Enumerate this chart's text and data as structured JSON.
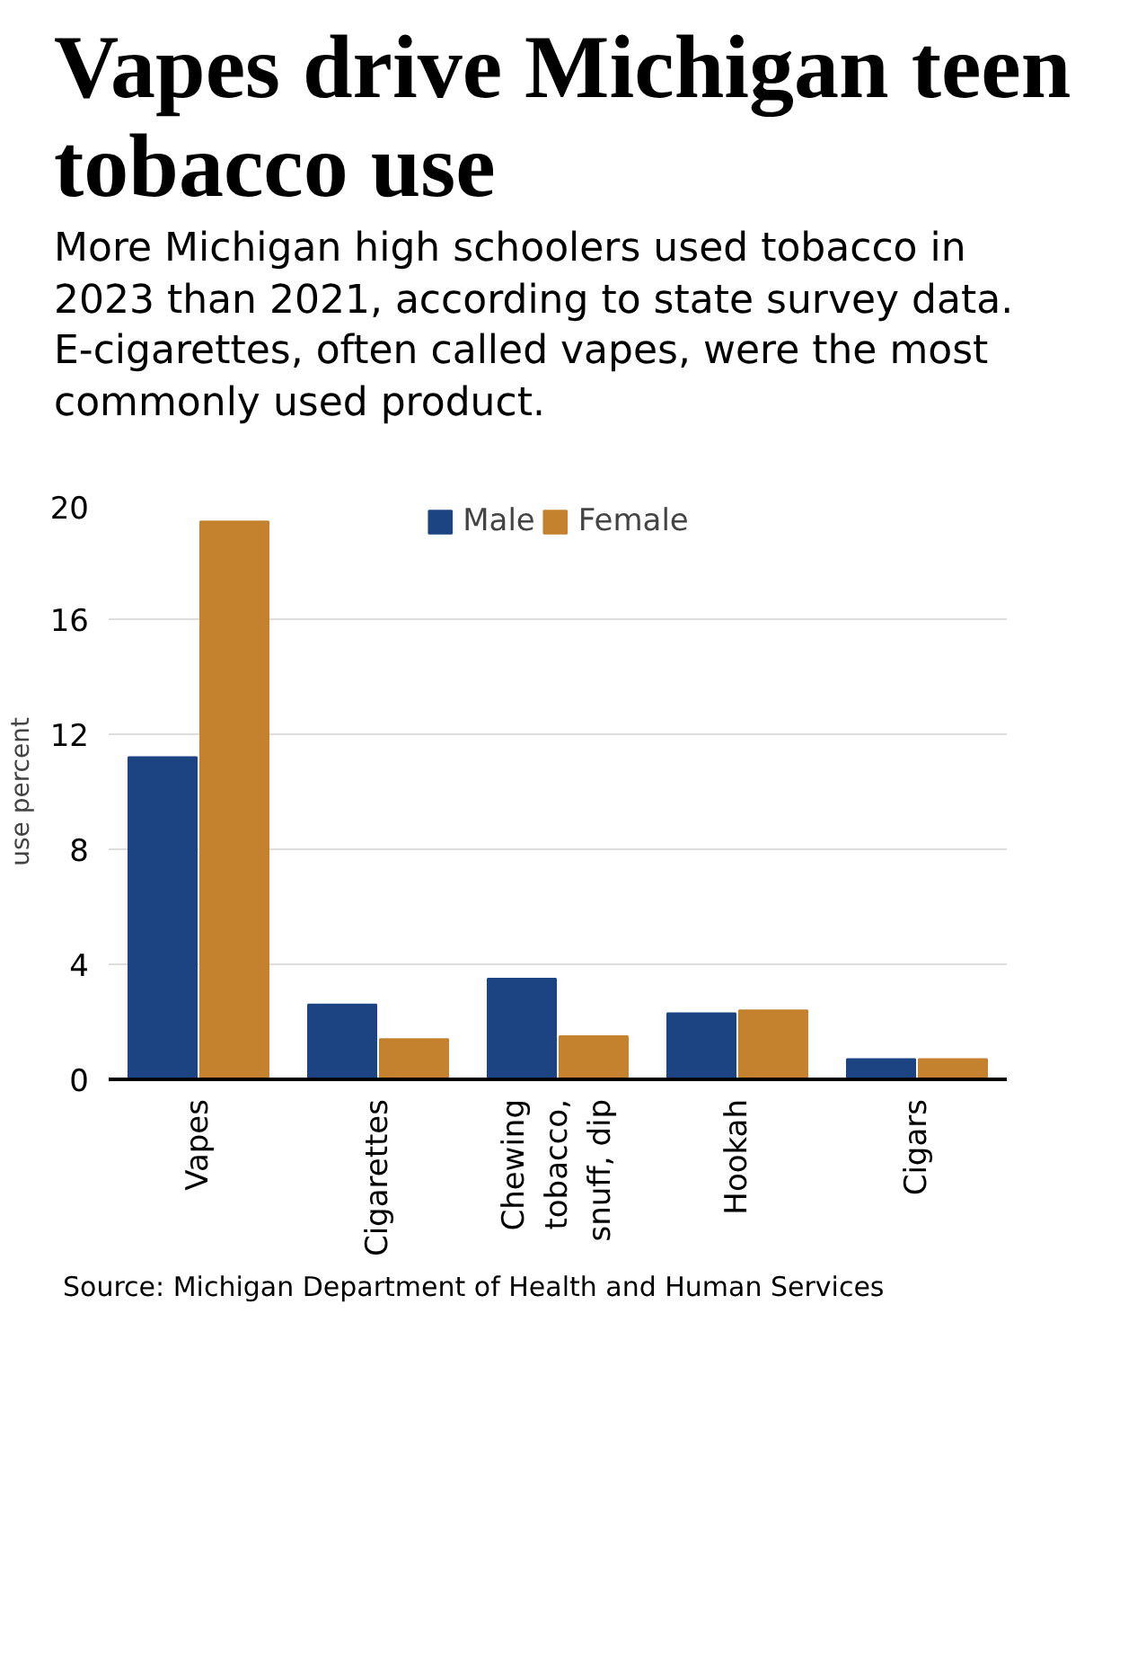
{
  "chart_data": {
    "type": "bar",
    "title": "Vapes drive Michigan teen tobacco use",
    "subtitle": "More Michigan high schoolers used tobacco in 2023 than 2021, according to state survey data. E-cigarettes, often called vapes, were the most commonly used product.",
    "ylabel": "use percent",
    "categories": [
      "Vapes",
      "Cigarettes",
      "Chewing tobacco, snuff, dip",
      "Hookah",
      "Cigars"
    ],
    "series": [
      {
        "name": "Male",
        "color": "#1c4482",
        "values": [
          11.2,
          2.6,
          3.5,
          2.3,
          0.7
        ]
      },
      {
        "name": "Female",
        "color": "#c4822f",
        "values": [
          19.4,
          1.4,
          1.5,
          2.4,
          0.7
        ]
      }
    ],
    "ylim": [
      0,
      20
    ],
    "yticks": [
      0,
      4,
      8,
      12,
      16,
      20
    ],
    "grid": "y",
    "legend": "top",
    "annotations": [
      "Source: Michigan Department of Health and Human Services"
    ]
  }
}
